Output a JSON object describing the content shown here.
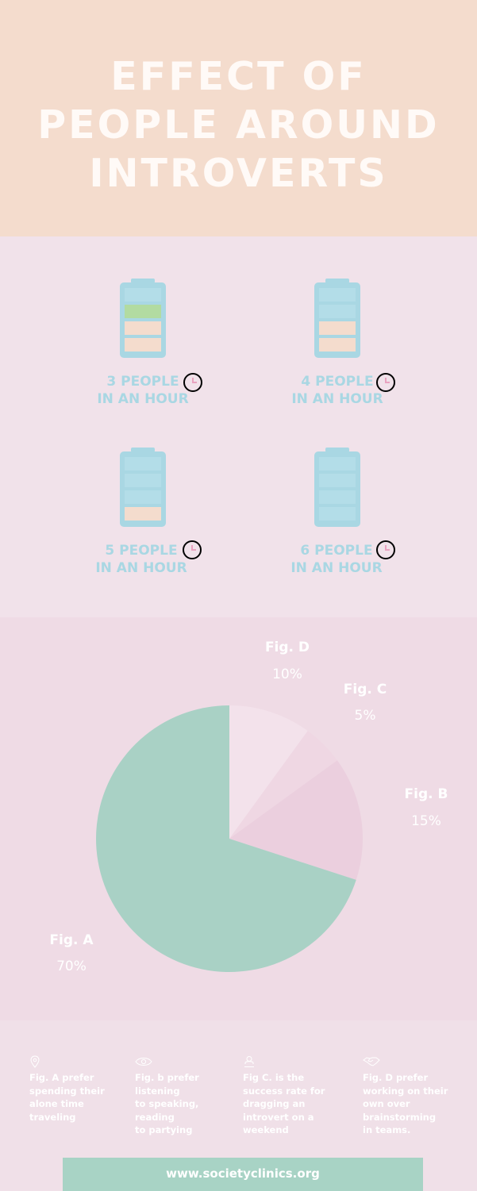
{
  "header": {
    "title_lines": [
      "EFFECT OF",
      "PEOPLE AROUND",
      "INTROVERTS"
    ]
  },
  "batteries": [
    {
      "line1": "3 PEOPLE",
      "line2": "IN AN HOUR",
      "filled_bars": 3,
      "top_bar_color": "#b2dba1",
      "icon": "clock-icon"
    },
    {
      "line1": "4 PEOPLE",
      "line2": "IN AN HOUR",
      "filled_bars": 2,
      "icon": "clock-icon"
    },
    {
      "line1": "5 PEOPLE",
      "line2": "IN AN HOUR",
      "filled_bars": 1,
      "icon": "clock-icon"
    },
    {
      "line1": "6 PEOPLE",
      "line2": "IN AN HOUR",
      "filled_bars": 0,
      "icon": "clock-icon"
    }
  ],
  "chart_data": {
    "type": "pie",
    "slices": [
      {
        "label": "Fig. A",
        "pct_label": "70%",
        "value": 70,
        "color": "#a9d1c5"
      },
      {
        "label": "Fig. B",
        "pct_label": "15%",
        "value": 15,
        "color": "#ebcfde"
      },
      {
        "label": "Fig. C",
        "pct_label": "5%",
        "value": 5,
        "color": "#efd7e3"
      },
      {
        "label": "Fig. D",
        "pct_label": "10%",
        "value": 10,
        "color": "#f3e2eb"
      }
    ]
  },
  "notes": [
    {
      "icon": "map-pin-icon",
      "lines": [
        "Fig. A prefer",
        "spending their",
        "alone time",
        "traveling"
      ]
    },
    {
      "icon": "eye-icon",
      "lines": [
        "Fig.  b prefer",
        "listening",
        "to speaking,",
        "reading",
        "to partying"
      ]
    },
    {
      "icon": "person-icon",
      "lines": [
        "Fig C. is the",
        "success rate for",
        "dragging an",
        "introvert on a",
        "weekend"
      ]
    },
    {
      "icon": "handshake-icon",
      "lines": [
        "Fig. D prefer",
        "working on their",
        "own over",
        "brainstorming",
        "in teams."
      ]
    }
  ],
  "footer": {
    "url": "www.societyclinics.org"
  },
  "colors": {
    "header_bg": "#f4dccd",
    "battery_body": "#a9d7e3",
    "battery_fill": "#f4dccd",
    "battery_green": "#b2dba1",
    "footer_bg": "#a8d3c5"
  }
}
